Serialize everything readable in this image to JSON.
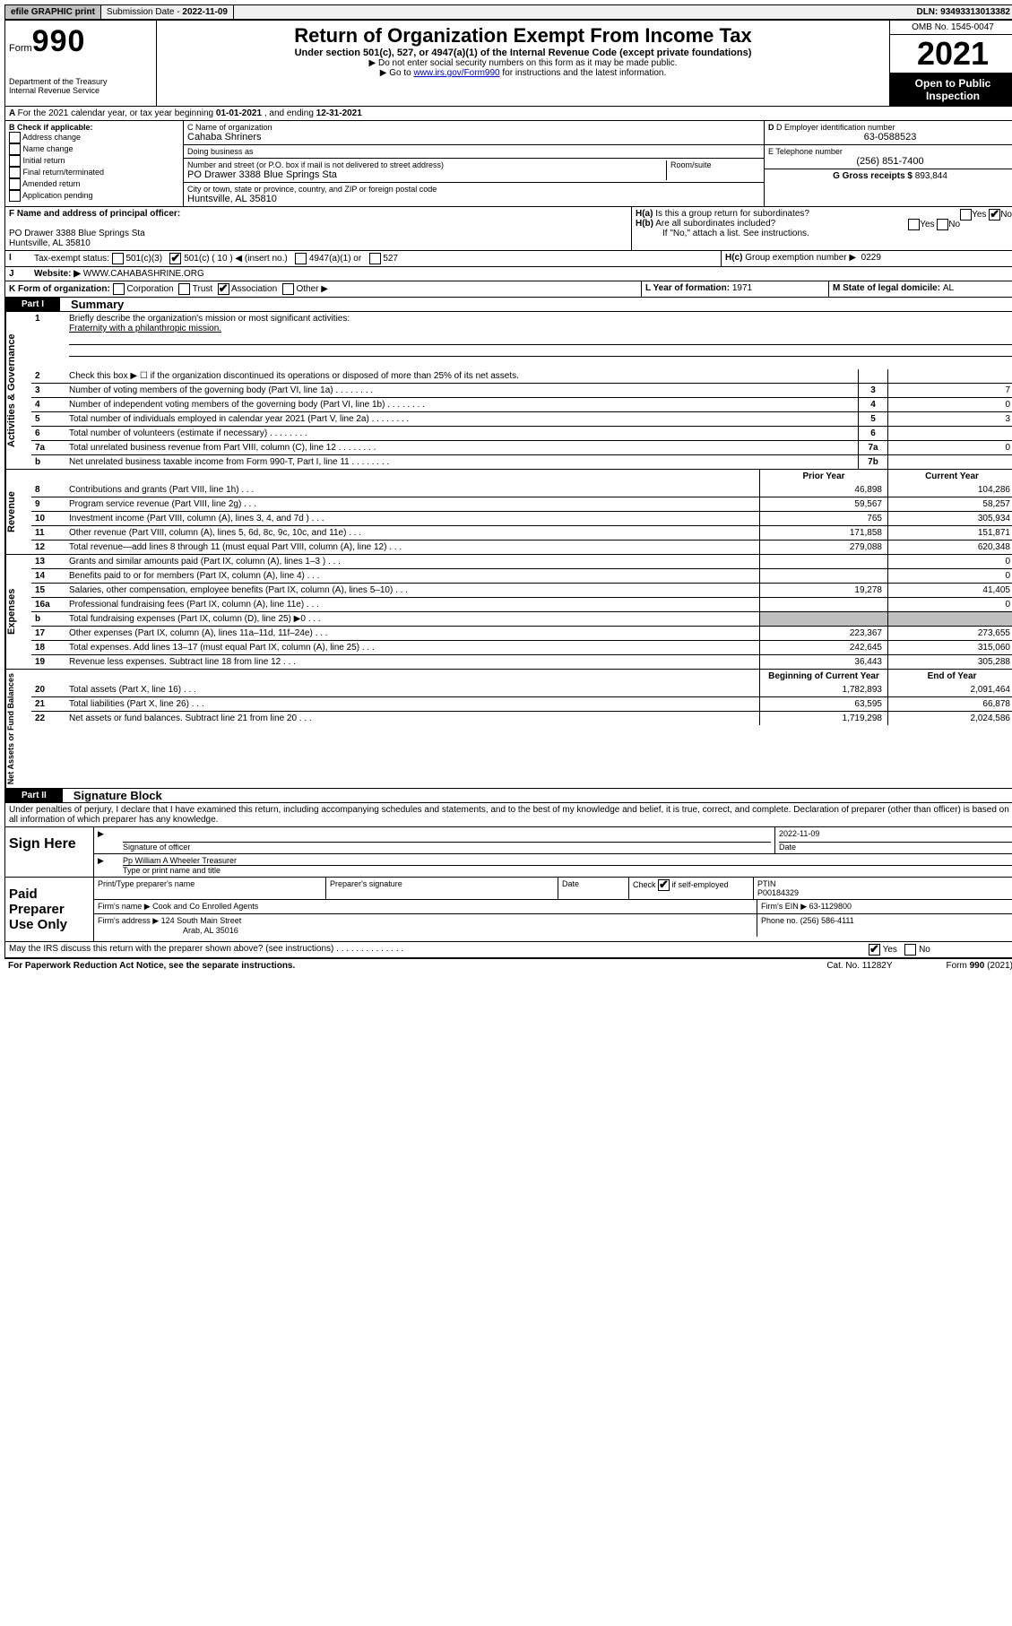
{
  "topbar": {
    "efile": "efile GRAPHIC print",
    "sub_label": "Submission Date - ",
    "sub_date": "2022-11-09",
    "dln": "DLN: 93493313013382"
  },
  "header": {
    "form_prefix": "Form",
    "form_no": "990",
    "dept": "Department of the Treasury",
    "irs": "Internal Revenue Service",
    "title": "Return of Organization Exempt From Income Tax",
    "subtitle": "Under section 501(c), 527, or 4947(a)(1) of the Internal Revenue Code (except private foundations)",
    "line1": "Do not enter social security numbers on this form as it may be made public.",
    "line2_pre": "Go to ",
    "line2_link": "www.irs.gov/Form990",
    "line2_post": " for instructions and the latest information.",
    "omb": "OMB No. 1545-0047",
    "year": "2021",
    "open": "Open to Public Inspection"
  },
  "a": {
    "text": "For the 2021 calendar year, or tax year beginning ",
    "begin": "01-01-2021",
    "mid": " , and ending ",
    "end": "12-31-2021"
  },
  "b": {
    "header": "B Check if applicable:",
    "opts": [
      "Address change",
      "Name change",
      "Initial return",
      "Final return/terminated",
      "Amended return",
      "Application pending"
    ]
  },
  "c": {
    "name_label": "C Name of organization",
    "name": "Cahaba Shriners",
    "dba_label": "Doing business as",
    "dba": "",
    "street_label": "Number and street (or P.O. box if mail is not delivered to street address)",
    "street": "PO Drawer 3388 Blue Springs Sta",
    "room_label": "Room/suite",
    "city_label": "City or town, state or province, country, and ZIP or foreign postal code",
    "city": "Huntsville, AL  35810"
  },
  "d": {
    "label": "D Employer identification number",
    "val": "63-0588523"
  },
  "e": {
    "label": "E Telephone number",
    "val": "(256) 851-7400"
  },
  "g": {
    "label": "G Gross receipts $",
    "val": "893,844"
  },
  "f": {
    "label": "F  Name and address of principal officer:",
    "line1": "PO Drawer 3388 Blue Springs Sta",
    "line2": "Huntsville, AL  35810"
  },
  "h": {
    "a": "Is this a group return for subordinates?",
    "a_yes": "Yes",
    "a_no": "No",
    "b": "Are all subordinates included?",
    "b_yes": "Yes",
    "b_no": "No",
    "b_note": "If \"No,\" attach a list. See instructions.",
    "c_label": "Group exemption number ▶",
    "c_val": "0229"
  },
  "i": {
    "label": "Tax-exempt status:",
    "o1": "501(c)(3)",
    "o2": "501(c) ( 10 ) ◀ (insert no.)",
    "o3": "4947(a)(1) or",
    "o4": "527"
  },
  "j": {
    "label": "Website: ▶",
    "val": "WWW.CAHABASHRINE.ORG"
  },
  "k": {
    "label": "K Form of organization:",
    "o1": "Corporation",
    "o2": "Trust",
    "o3": "Association",
    "o4": "Other ▶"
  },
  "l": {
    "label": "L Year of formation: ",
    "val": "1971"
  },
  "m": {
    "label": "M State of legal domicile: ",
    "val": "AL"
  },
  "part1": {
    "code": "Part I",
    "title": "Summary"
  },
  "mission": {
    "num": "1",
    "label": "Briefly describe the organization's mission or most significant activities:",
    "text": "Fraternity with a philanthropic mission."
  },
  "gov_lines": [
    {
      "n": "2",
      "d": "Check this box ▶ ☐  if the organization discontinued its operations or disposed of more than 25% of its net assets.",
      "box": "",
      "v": ""
    },
    {
      "n": "3",
      "d": "Number of voting members of the governing body (Part VI, line 1a)",
      "box": "3",
      "v": "7"
    },
    {
      "n": "4",
      "d": "Number of independent voting members of the governing body (Part VI, line 1b)",
      "box": "4",
      "v": "0"
    },
    {
      "n": "5",
      "d": "Total number of individuals employed in calendar year 2021 (Part V, line 2a)",
      "box": "5",
      "v": "3"
    },
    {
      "n": "6",
      "d": "Total number of volunteers (estimate if necessary)",
      "box": "6",
      "v": ""
    },
    {
      "n": "7a",
      "d": "Total unrelated business revenue from Part VIII, column (C), line 12",
      "box": "7a",
      "v": "0"
    },
    {
      "n": "b",
      "d": "Net unrelated business taxable income from Form 990-T, Part I, line 11",
      "box": "7b",
      "v": ""
    }
  ],
  "col_labels": {
    "prior": "Prior Year",
    "current": "Current Year",
    "begin": "Beginning of Current Year",
    "end": "End of Year"
  },
  "rev_lines": [
    {
      "n": "8",
      "d": "Contributions and grants (Part VIII, line 1h)",
      "p": "46,898",
      "c": "104,286"
    },
    {
      "n": "9",
      "d": "Program service revenue (Part VIII, line 2g)",
      "p": "59,567",
      "c": "58,257"
    },
    {
      "n": "10",
      "d": "Investment income (Part VIII, column (A), lines 3, 4, and 7d )",
      "p": "765",
      "c": "305,934"
    },
    {
      "n": "11",
      "d": "Other revenue (Part VIII, column (A), lines 5, 6d, 8c, 9c, 10c, and 11e)",
      "p": "171,858",
      "c": "151,871"
    },
    {
      "n": "12",
      "d": "Total revenue—add lines 8 through 11 (must equal Part VIII, column (A), line 12)",
      "p": "279,088",
      "c": "620,348"
    }
  ],
  "exp_lines": [
    {
      "n": "13",
      "d": "Grants and similar amounts paid (Part IX, column (A), lines 1–3 )",
      "p": "",
      "c": "0"
    },
    {
      "n": "14",
      "d": "Benefits paid to or for members (Part IX, column (A), line 4)",
      "p": "",
      "c": "0"
    },
    {
      "n": "15",
      "d": "Salaries, other compensation, employee benefits (Part IX, column (A), lines 5–10)",
      "p": "19,278",
      "c": "41,405"
    },
    {
      "n": "16a",
      "d": "Professional fundraising fees (Part IX, column (A), line 11e)",
      "p": "",
      "c": "0"
    },
    {
      "n": "b",
      "d": "Total fundraising expenses (Part IX, column (D), line 25) ▶0",
      "p": "grey",
      "c": "grey"
    },
    {
      "n": "17",
      "d": "Other expenses (Part IX, column (A), lines 11a–11d, 11f–24e)",
      "p": "223,367",
      "c": "273,655"
    },
    {
      "n": "18",
      "d": "Total expenses. Add lines 13–17 (must equal Part IX, column (A), line 25)",
      "p": "242,645",
      "c": "315,060"
    },
    {
      "n": "19",
      "d": "Revenue less expenses. Subtract line 18 from line 12",
      "p": "36,443",
      "c": "305,288"
    }
  ],
  "net_lines": [
    {
      "n": "20",
      "d": "Total assets (Part X, line 16)",
      "p": "1,782,893",
      "c": "2,091,464"
    },
    {
      "n": "21",
      "d": "Total liabilities (Part X, line 26)",
      "p": "63,595",
      "c": "66,878"
    },
    {
      "n": "22",
      "d": "Net assets or fund balances. Subtract line 21 from line 20",
      "p": "1,719,298",
      "c": "2,024,586"
    }
  ],
  "side_labels": {
    "gov": "Activities & Governance",
    "rev": "Revenue",
    "exp": "Expenses",
    "net": "Net Assets or Fund Balances"
  },
  "part2": {
    "code": "Part II",
    "title": "Signature Block"
  },
  "penalties": "Under penalties of perjury, I declare that I have examined this return, including accompanying schedules and statements, and to the best of my knowledge and belief, it is true, correct, and complete. Declaration of preparer (other than officer) is based on all information of which preparer has any knowledge.",
  "sign": {
    "label": "Sign Here",
    "sig_officer": "Signature of officer",
    "date_label": "Date",
    "date": "2022-11-09",
    "name": "Pp William A Wheeler Treasurer",
    "name_label": "Type or print name and title"
  },
  "prep": {
    "label": "Paid Preparer Use Only",
    "h1": "Print/Type preparer's name",
    "h2": "Preparer's signature",
    "h3": "Date",
    "chk_label": "Check",
    "chk_post": "if self-employed",
    "ptin_label": "PTIN",
    "ptin": "P00184329",
    "firm_name_label": "Firm's name   ▶",
    "firm_name": "Cook and Co Enrolled Agents",
    "firm_ein_label": "Firm's EIN ▶",
    "firm_ein": "63-1129800",
    "firm_addr_label": "Firm's address ▶",
    "firm_addr1": "124 South Main Street",
    "firm_addr2": "Arab, AL  35016",
    "phone_label": "Phone no.",
    "phone": "(256) 586-4111"
  },
  "discuss": "May the IRS discuss this return with the preparer shown above? (see instructions)",
  "discuss_yes": "Yes",
  "discuss_no": "No",
  "footer": {
    "pra": "For Paperwork Reduction Act Notice, see the separate instructions.",
    "cat": "Cat. No. 11282Y",
    "form": "Form 990 (2021)"
  }
}
